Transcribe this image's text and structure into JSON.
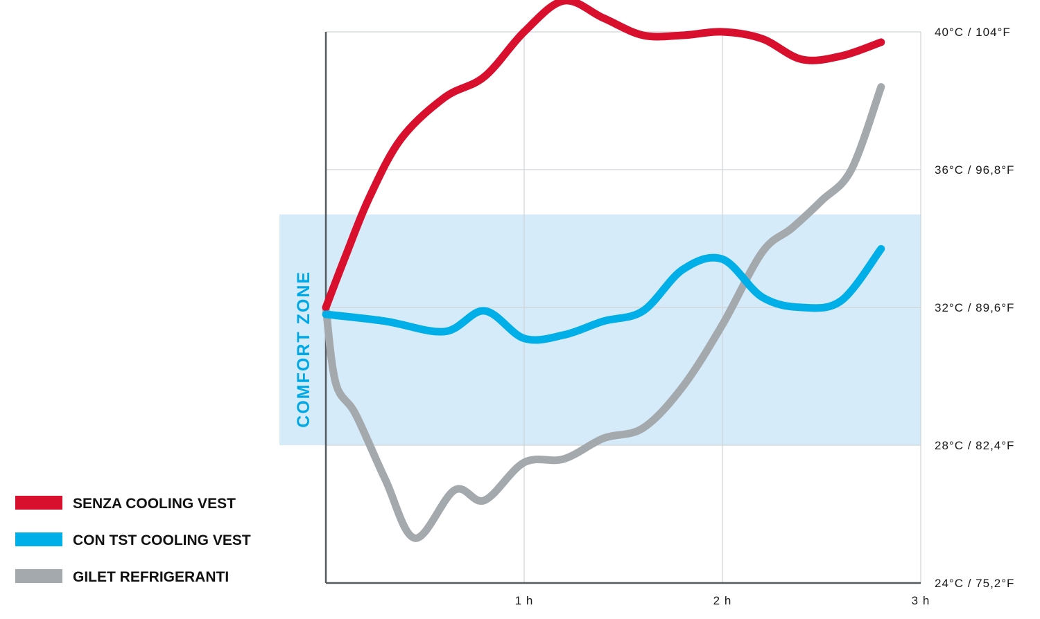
{
  "chart_data": {
    "type": "line",
    "title": "",
    "xlabel": "",
    "ylabel": "",
    "xlim": [
      0,
      3
    ],
    "ylim": [
      24,
      40
    ],
    "x_ticks": [
      {
        "value": 1,
        "label": "1 h"
      },
      {
        "value": 2,
        "label": "2 h"
      },
      {
        "value": 3,
        "label": "3 h"
      }
    ],
    "y_ticks": [
      {
        "value": 40,
        "label": "40°C / 104°F"
      },
      {
        "value": 36,
        "label": "36°C / 96,8°F"
      },
      {
        "value": 32,
        "label": "32°C / 89,6°F"
      },
      {
        "value": 28,
        "label": "28°C / 82,4°F"
      },
      {
        "value": 24,
        "label": "24°C / 75,2°F"
      }
    ],
    "grid": true,
    "legend_position": "bottom-left",
    "comfort_zone": {
      "label": "COMFORT ZONE",
      "y_range": [
        28,
        34.7
      ],
      "color": "#d6ebf9",
      "label_color": "#00a9e6"
    },
    "series": [
      {
        "name": "SENZA COOLING VEST",
        "color": "#d8102e",
        "x": [
          0,
          0.1,
          0.22,
          0.38,
          0.6,
          0.8,
          1.0,
          1.2,
          1.4,
          1.6,
          1.8,
          2.0,
          2.2,
          2.4,
          2.6,
          2.8
        ],
        "y": [
          32,
          33.5,
          35.2,
          36.9,
          38.1,
          38.7,
          40.0,
          40.9,
          40.4,
          39.9,
          39.9,
          40.0,
          39.8,
          39.2,
          39.3,
          39.7
        ]
      },
      {
        "name": "CON TST COOLING VEST",
        "color": "#00aee8",
        "x": [
          0,
          0.3,
          0.6,
          0.8,
          1.0,
          1.2,
          1.4,
          1.6,
          1.8,
          2.0,
          2.2,
          2.4,
          2.6,
          2.8
        ],
        "y": [
          31.8,
          31.6,
          31.3,
          31.9,
          31.1,
          31.2,
          31.6,
          31.9,
          33.1,
          33.4,
          32.3,
          32.0,
          32.2,
          33.7
        ]
      },
      {
        "name": "GILET REFRIGERANTI",
        "color": "#a4a9ae",
        "x": [
          0,
          0.05,
          0.15,
          0.3,
          0.45,
          0.65,
          0.8,
          1.0,
          1.2,
          1.4,
          1.6,
          1.8,
          2.0,
          2.2,
          2.35,
          2.5,
          2.65,
          2.8
        ],
        "y": [
          32,
          29.8,
          28.9,
          27.0,
          25.3,
          26.7,
          26.4,
          27.5,
          27.6,
          28.2,
          28.5,
          29.7,
          31.5,
          33.6,
          34.3,
          35.1,
          36.0,
          38.4
        ]
      }
    ]
  }
}
